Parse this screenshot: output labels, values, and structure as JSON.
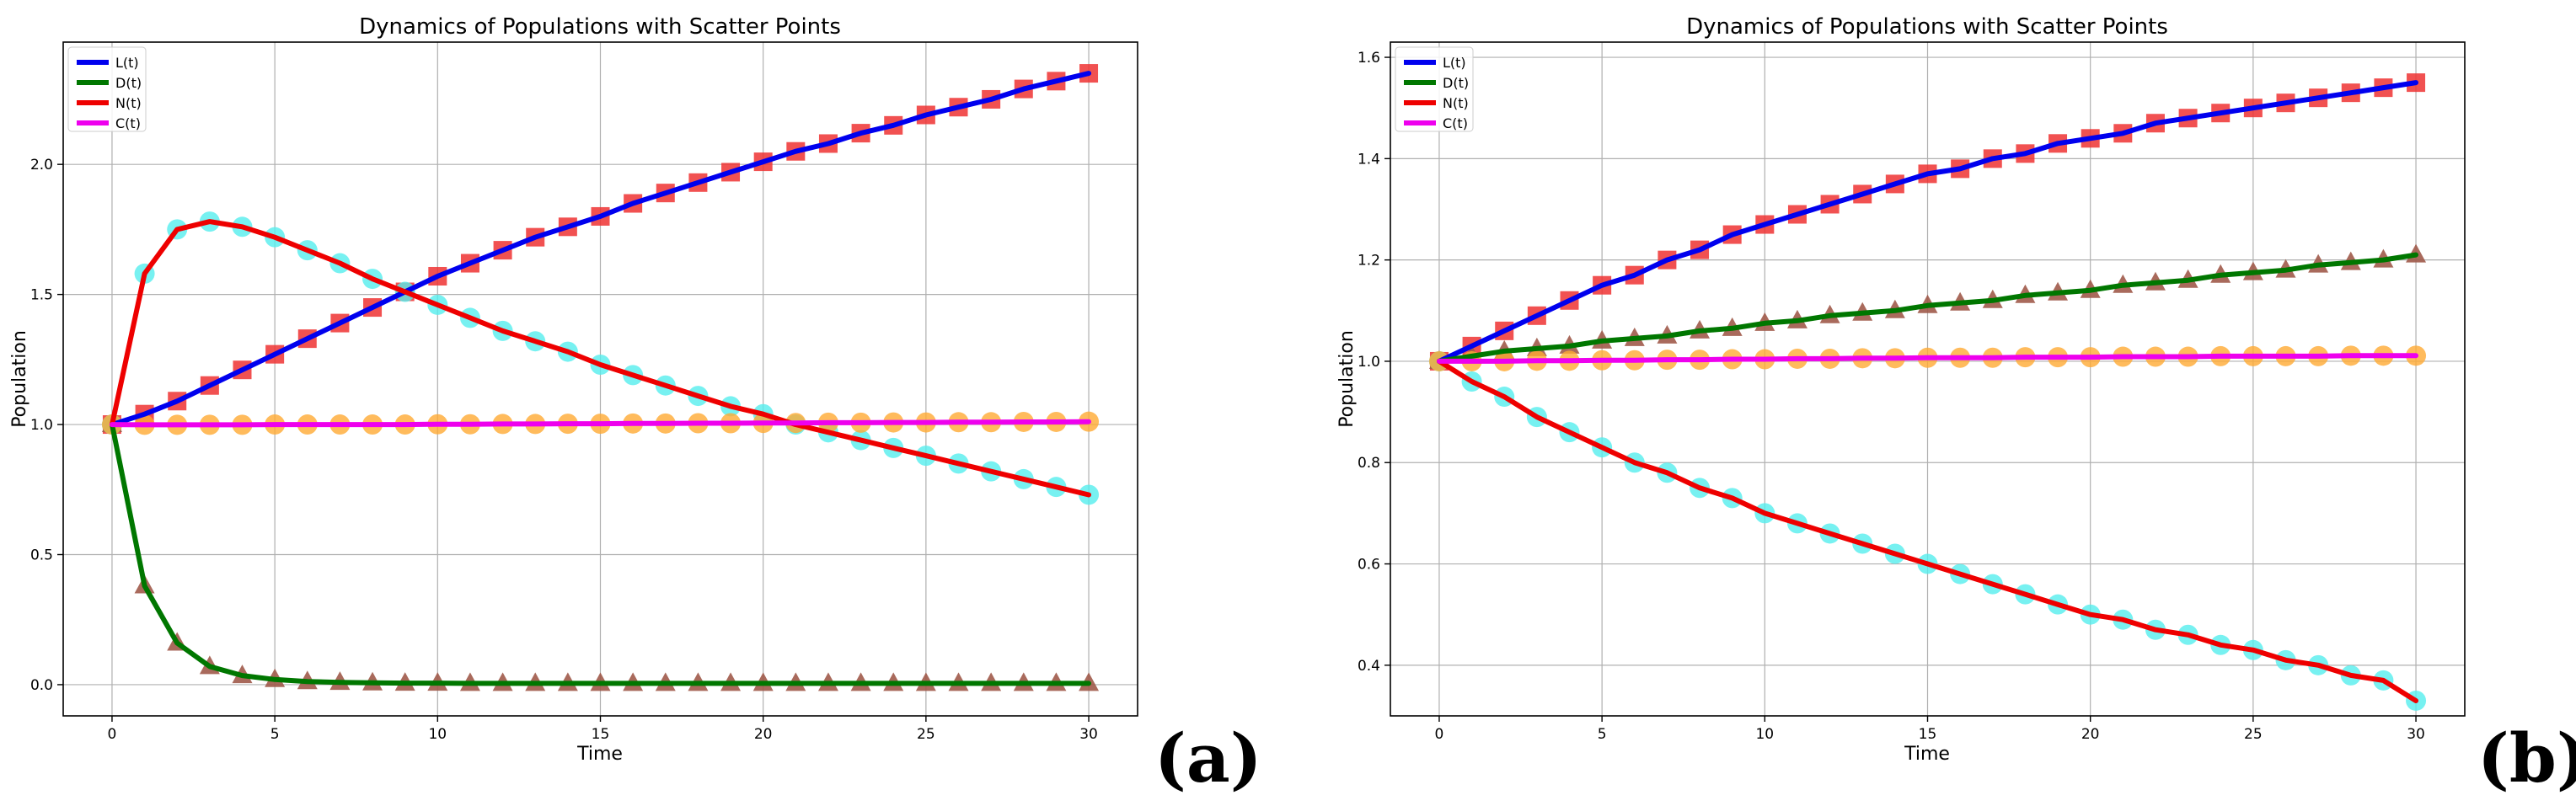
{
  "chart_data": [
    {
      "type": "line",
      "panel_label": "(a)",
      "title": "Dynamics of Populations with Scatter Points",
      "xlabel": "Time",
      "ylabel": "Population",
      "xlim": [
        -1.5,
        31.5
      ],
      "ylim": [
        -0.12,
        2.47
      ],
      "xticks": [
        0,
        5,
        10,
        15,
        20,
        25,
        30
      ],
      "yticks": [
        0.0,
        0.5,
        1.0,
        1.5,
        2.0
      ],
      "ytick_labels": [
        "0.0",
        "0.5",
        "1.0",
        "1.5",
        "2.0"
      ],
      "grid": true,
      "legend_position": "top-left",
      "series": [
        {
          "name": "L(t)",
          "key": "L",
          "color": "#0000ee",
          "marker": "square",
          "marker_color": "#ee3333",
          "x": [
            0,
            1,
            2,
            3,
            4,
            5,
            6,
            7,
            8,
            9,
            10,
            11,
            12,
            13,
            14,
            15,
            16,
            17,
            18,
            19,
            20,
            21,
            22,
            23,
            24,
            25,
            26,
            27,
            28,
            29,
            30
          ],
          "values": [
            1.0,
            1.04,
            1.09,
            1.15,
            1.21,
            1.27,
            1.33,
            1.39,
            1.45,
            1.51,
            1.57,
            1.62,
            1.67,
            1.72,
            1.76,
            1.8,
            1.85,
            1.89,
            1.93,
            1.97,
            2.01,
            2.05,
            2.08,
            2.12,
            2.15,
            2.19,
            2.22,
            2.25,
            2.29,
            2.32,
            2.35
          ]
        },
        {
          "name": "D(t)",
          "key": "D",
          "color": "#007700",
          "marker": "triangle",
          "marker_color": "#a05a4a",
          "x": [
            0,
            1,
            2,
            3,
            4,
            5,
            6,
            7,
            8,
            9,
            10,
            11,
            12,
            13,
            14,
            15,
            16,
            17,
            18,
            19,
            20,
            21,
            22,
            23,
            24,
            25,
            26,
            27,
            28,
            29,
            30
          ],
          "values": [
            1.0,
            0.38,
            0.16,
            0.07,
            0.035,
            0.02,
            0.012,
            0.009,
            0.007,
            0.006,
            0.006,
            0.005,
            0.005,
            0.005,
            0.005,
            0.005,
            0.005,
            0.005,
            0.005,
            0.005,
            0.005,
            0.005,
            0.005,
            0.005,
            0.005,
            0.005,
            0.005,
            0.005,
            0.005,
            0.005,
            0.005
          ]
        },
        {
          "name": "N(t)",
          "key": "N",
          "color": "#ee0000",
          "marker": "circle",
          "marker_color": "#55eeee",
          "x": [
            0,
            1,
            2,
            3,
            4,
            5,
            6,
            7,
            8,
            9,
            10,
            11,
            12,
            13,
            14,
            15,
            16,
            17,
            18,
            19,
            20,
            21,
            22,
            23,
            24,
            25,
            26,
            27,
            28,
            29,
            30
          ],
          "values": [
            1.0,
            1.58,
            1.75,
            1.78,
            1.76,
            1.72,
            1.67,
            1.62,
            1.56,
            1.51,
            1.46,
            1.41,
            1.36,
            1.32,
            1.28,
            1.23,
            1.19,
            1.15,
            1.11,
            1.07,
            1.04,
            1.0,
            0.97,
            0.94,
            0.91,
            0.88,
            0.85,
            0.82,
            0.79,
            0.76,
            0.73
          ]
        },
        {
          "name": "C(t)",
          "key": "C",
          "color": "#ee00ee",
          "marker": "circle",
          "marker_color": "#ffaa33",
          "x": [
            0,
            1,
            2,
            3,
            4,
            5,
            6,
            7,
            8,
            9,
            10,
            11,
            12,
            13,
            14,
            15,
            16,
            17,
            18,
            19,
            20,
            21,
            22,
            23,
            24,
            25,
            26,
            27,
            28,
            29,
            30
          ],
          "values": [
            1.0,
            0.999,
            0.999,
            0.999,
            0.999,
            1.0,
            1.0,
            1.0,
            1.0,
            1.0,
            1.001,
            1.001,
            1.002,
            1.002,
            1.003,
            1.003,
            1.004,
            1.004,
            1.005,
            1.005,
            1.006,
            1.006,
            1.007,
            1.007,
            1.008,
            1.008,
            1.009,
            1.009,
            1.01,
            1.01,
            1.011
          ]
        }
      ]
    },
    {
      "type": "line",
      "panel_label": "(b)",
      "title": "Dynamics of Populations with Scatter Points",
      "xlabel": "Time",
      "ylabel": "Population",
      "xlim": [
        -1.5,
        31.5
      ],
      "ylim": [
        0.3,
        1.63
      ],
      "xticks": [
        0,
        5,
        10,
        15,
        20,
        25,
        30
      ],
      "yticks": [
        0.4,
        0.6,
        0.8,
        1.0,
        1.2,
        1.4,
        1.6
      ],
      "ytick_labels": [
        "0.4",
        "0.6",
        "0.8",
        "1.0",
        "1.2",
        "1.4",
        "1.6"
      ],
      "grid": true,
      "legend_position": "top-left",
      "series": [
        {
          "name": "L(t)",
          "key": "L",
          "color": "#0000ee",
          "marker": "square",
          "marker_color": "#ee3333",
          "x": [
            0,
            1,
            2,
            3,
            4,
            5,
            6,
            7,
            8,
            9,
            10,
            11,
            12,
            13,
            14,
            15,
            16,
            17,
            18,
            19,
            20,
            21,
            22,
            23,
            24,
            25,
            26,
            27,
            28,
            29,
            30
          ],
          "values": [
            1.0,
            1.03,
            1.06,
            1.09,
            1.12,
            1.15,
            1.17,
            1.2,
            1.22,
            1.25,
            1.27,
            1.29,
            1.31,
            1.33,
            1.35,
            1.37,
            1.38,
            1.4,
            1.41,
            1.43,
            1.44,
            1.45,
            1.47,
            1.48,
            1.49,
            1.5,
            1.51,
            1.52,
            1.53,
            1.54,
            1.55
          ]
        },
        {
          "name": "D(t)",
          "key": "D",
          "color": "#007700",
          "marker": "triangle",
          "marker_color": "#a05a4a",
          "x": [
            0,
            1,
            2,
            3,
            4,
            5,
            6,
            7,
            8,
            9,
            10,
            11,
            12,
            13,
            14,
            15,
            16,
            17,
            18,
            19,
            20,
            21,
            22,
            23,
            24,
            25,
            26,
            27,
            28,
            29,
            30
          ],
          "values": [
            1.0,
            1.01,
            1.02,
            1.025,
            1.03,
            1.04,
            1.045,
            1.05,
            1.06,
            1.065,
            1.075,
            1.08,
            1.09,
            1.095,
            1.1,
            1.11,
            1.115,
            1.12,
            1.13,
            1.135,
            1.14,
            1.15,
            1.155,
            1.16,
            1.17,
            1.175,
            1.18,
            1.19,
            1.195,
            1.2,
            1.21
          ]
        },
        {
          "name": "N(t)",
          "key": "N",
          "color": "#ee0000",
          "marker": "circle",
          "marker_color": "#55eeee",
          "x": [
            0,
            1,
            2,
            3,
            4,
            5,
            6,
            7,
            8,
            9,
            10,
            11,
            12,
            13,
            14,
            15,
            16,
            17,
            18,
            19,
            20,
            21,
            22,
            23,
            24,
            25,
            26,
            27,
            28,
            29,
            30
          ],
          "values": [
            1.0,
            0.96,
            0.93,
            0.89,
            0.86,
            0.83,
            0.8,
            0.78,
            0.75,
            0.73,
            0.7,
            0.68,
            0.66,
            0.64,
            0.62,
            0.6,
            0.58,
            0.56,
            0.54,
            0.52,
            0.5,
            0.49,
            0.47,
            0.46,
            0.44,
            0.43,
            0.41,
            0.4,
            0.38,
            0.37,
            0.33
          ]
        },
        {
          "name": "C(t)",
          "key": "C",
          "color": "#ee00ee",
          "marker": "circle",
          "marker_color": "#ffaa33",
          "x": [
            0,
            1,
            2,
            3,
            4,
            5,
            6,
            7,
            8,
            9,
            10,
            11,
            12,
            13,
            14,
            15,
            16,
            17,
            18,
            19,
            20,
            21,
            22,
            23,
            24,
            25,
            26,
            27,
            28,
            29,
            30
          ],
          "values": [
            1.0,
            1.0,
            1.0,
            1.001,
            1.001,
            1.002,
            1.002,
            1.003,
            1.003,
            1.004,
            1.004,
            1.005,
            1.005,
            1.006,
            1.006,
            1.007,
            1.007,
            1.007,
            1.008,
            1.008,
            1.008,
            1.009,
            1.009,
            1.009,
            1.01,
            1.01,
            1.01,
            1.01,
            1.011,
            1.011,
            1.011
          ]
        }
      ]
    }
  ]
}
